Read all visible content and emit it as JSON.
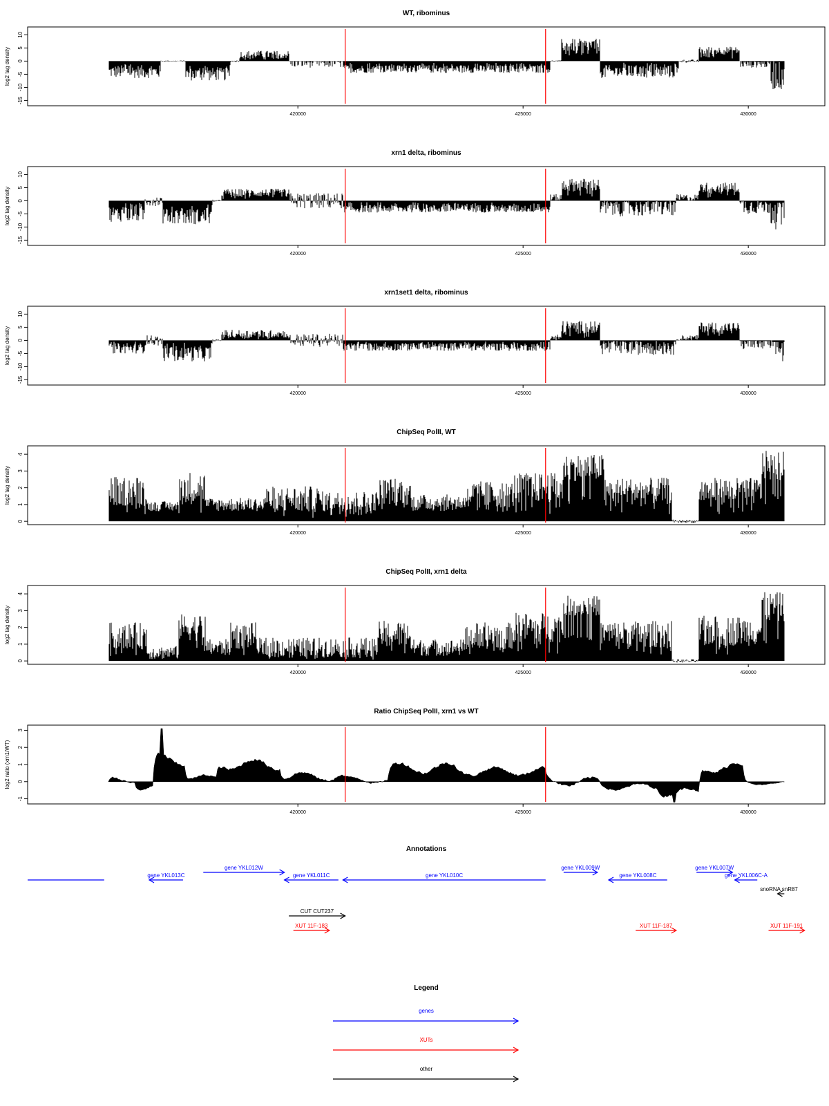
{
  "chart_data": {
    "type": "multi-panel genome browser",
    "x_axis": {
      "ticks": [
        "420000",
        "425000",
        "430000"
      ],
      "range": [
        414000,
        431700
      ],
      "data_start": 415800,
      "data_end": 430800
    },
    "marker_positions": [
      421050,
      425500
    ],
    "marker_color": "#ff0000",
    "panels": [
      {
        "id": "wt-ribominus",
        "title": "WT, ribominus",
        "ylabel": "log2 tag density",
        "type": "bar",
        "ylim": [
          -17,
          13
        ],
        "yticks": [
          10,
          5,
          0,
          -5,
          -10,
          -15
        ],
        "segments": [
          {
            "start": 415800,
            "end": 416950,
            "mean": -4,
            "amp": 2.5
          },
          {
            "start": 416950,
            "end": 417500,
            "mean": 0,
            "amp": 0.3
          },
          {
            "start": 417500,
            "end": 418500,
            "mean": -5,
            "amp": 2.5
          },
          {
            "start": 418500,
            "end": 418700,
            "mean": 0,
            "amp": 0.4
          },
          {
            "start": 418700,
            "end": 419800,
            "mean": 2.5,
            "amp": 1.5
          },
          {
            "start": 419800,
            "end": 421000,
            "mean": -0.5,
            "amp": 2
          },
          {
            "start": 421000,
            "end": 425600,
            "mean": -3,
            "amp": 1.5
          },
          {
            "start": 425600,
            "end": 425850,
            "mean": 0,
            "amp": 0.3
          },
          {
            "start": 425850,
            "end": 426700,
            "mean": 6,
            "amp": 2.5
          },
          {
            "start": 426700,
            "end": 428450,
            "mean": -4,
            "amp": 2.5
          },
          {
            "start": 428450,
            "end": 428900,
            "mean": 0,
            "amp": 0.6
          },
          {
            "start": 428900,
            "end": 429800,
            "mean": 4,
            "amp": 1.5
          },
          {
            "start": 429800,
            "end": 430500,
            "mean": -1,
            "amp": 1.5
          },
          {
            "start": 430500,
            "end": 430800,
            "mean": -5,
            "amp": 6
          }
        ]
      },
      {
        "id": "xrn1-ribominus",
        "title": "xrn1 delta, ribominus",
        "ylabel": "log2 tag density",
        "type": "bar",
        "ylim": [
          -17,
          13
        ],
        "yticks": [
          10,
          5,
          0,
          -5,
          -10,
          -15
        ],
        "segments": [
          {
            "start": 415800,
            "end": 416600,
            "mean": -5,
            "amp": 3
          },
          {
            "start": 416600,
            "end": 417000,
            "mean": 0,
            "amp": 2
          },
          {
            "start": 417000,
            "end": 418100,
            "mean": -6,
            "amp": 3
          },
          {
            "start": 418100,
            "end": 418300,
            "mean": 0,
            "amp": 0.4
          },
          {
            "start": 418300,
            "end": 419800,
            "mean": 3,
            "amp": 1.5
          },
          {
            "start": 419800,
            "end": 421000,
            "mean": 0,
            "amp": 3
          },
          {
            "start": 421000,
            "end": 425600,
            "mean": -3,
            "amp": 1.5
          },
          {
            "start": 425600,
            "end": 425850,
            "mean": 1,
            "amp": 1.5
          },
          {
            "start": 425850,
            "end": 426700,
            "mean": 6,
            "amp": 2.5
          },
          {
            "start": 426700,
            "end": 428400,
            "mean": -2.5,
            "amp": 3.5
          },
          {
            "start": 428400,
            "end": 428900,
            "mean": 1,
            "amp": 1.5
          },
          {
            "start": 428900,
            "end": 429800,
            "mean": 5,
            "amp": 2
          },
          {
            "start": 429800,
            "end": 430500,
            "mean": -2,
            "amp": 3
          },
          {
            "start": 430500,
            "end": 430800,
            "mean": -4,
            "amp": 7
          }
        ]
      },
      {
        "id": "xrn1set1-ribominus",
        "title": "xrn1set1 delta, ribominus",
        "ylabel": "log2 tag density",
        "type": "bar",
        "ylim": [
          -17,
          13
        ],
        "yticks": [
          10,
          5,
          0,
          -5,
          -10,
          -15
        ],
        "segments": [
          {
            "start": 415800,
            "end": 416600,
            "mean": -3,
            "amp": 2
          },
          {
            "start": 416600,
            "end": 417000,
            "mean": 0,
            "amp": 2
          },
          {
            "start": 417000,
            "end": 418100,
            "mean": -5,
            "amp": 3
          },
          {
            "start": 418100,
            "end": 418300,
            "mean": 0,
            "amp": 0.4
          },
          {
            "start": 418300,
            "end": 419800,
            "mean": 2.5,
            "amp": 1.5
          },
          {
            "start": 419800,
            "end": 421000,
            "mean": 0,
            "amp": 2.5
          },
          {
            "start": 421000,
            "end": 425600,
            "mean": -2.5,
            "amp": 1.5
          },
          {
            "start": 425600,
            "end": 425850,
            "mean": 1,
            "amp": 1.5
          },
          {
            "start": 425850,
            "end": 426700,
            "mean": 5,
            "amp": 2.5
          },
          {
            "start": 426700,
            "end": 428400,
            "mean": -2.5,
            "amp": 3
          },
          {
            "start": 428400,
            "end": 428900,
            "mean": 1,
            "amp": 1
          },
          {
            "start": 428900,
            "end": 429800,
            "mean": 5,
            "amp": 2
          },
          {
            "start": 429800,
            "end": 430500,
            "mean": -1,
            "amp": 3
          },
          {
            "start": 430500,
            "end": 430800,
            "mean": -3,
            "amp": 6
          }
        ]
      },
      {
        "id": "chipseq-wt",
        "title": "ChipSeq PolII, WT",
        "ylabel": "log2 tag density",
        "type": "bar",
        "ylim": [
          -0.2,
          4.5
        ],
        "yticks": [
          0,
          1,
          2,
          3,
          4
        ],
        "segments": [
          {
            "start": 415800,
            "end": 416650,
            "mean": 1.8,
            "amp": 0.9
          },
          {
            "start": 416650,
            "end": 417350,
            "mean": 0.9,
            "amp": 0.3
          },
          {
            "start": 417350,
            "end": 417950,
            "mean": 2,
            "amp": 1
          },
          {
            "start": 417950,
            "end": 419200,
            "mean": 1,
            "amp": 0.4
          },
          {
            "start": 419200,
            "end": 420500,
            "mean": 1.3,
            "amp": 0.8
          },
          {
            "start": 420500,
            "end": 421800,
            "mean": 1.2,
            "amp": 0.6
          },
          {
            "start": 421800,
            "end": 422500,
            "mean": 1.8,
            "amp": 0.8
          },
          {
            "start": 422500,
            "end": 423700,
            "mean": 1.1,
            "amp": 0.5
          },
          {
            "start": 423700,
            "end": 424800,
            "mean": 1.6,
            "amp": 0.8
          },
          {
            "start": 424800,
            "end": 425900,
            "mean": 2,
            "amp": 0.9
          },
          {
            "start": 425900,
            "end": 426800,
            "mean": 3.2,
            "amp": 0.8
          },
          {
            "start": 426800,
            "end": 428300,
            "mean": 1.8,
            "amp": 0.8
          },
          {
            "start": 428300,
            "end": 428900,
            "mean": 0,
            "amp": 0.1
          },
          {
            "start": 428900,
            "end": 430300,
            "mean": 1.8,
            "amp": 0.8
          },
          {
            "start": 430300,
            "end": 430800,
            "mean": 3.3,
            "amp": 0.9
          }
        ]
      },
      {
        "id": "chipseq-xrn1",
        "title": "ChipSeq PolII, xrn1 delta",
        "ylabel": "log2 tag density",
        "type": "bar",
        "ylim": [
          -0.2,
          4.5
        ],
        "yticks": [
          0,
          1,
          2,
          3,
          4
        ],
        "segments": [
          {
            "start": 415800,
            "end": 416650,
            "mean": 1.5,
            "amp": 0.8
          },
          {
            "start": 416650,
            "end": 417350,
            "mean": 0.5,
            "amp": 0.4
          },
          {
            "start": 417350,
            "end": 417950,
            "mean": 2,
            "amp": 0.8
          },
          {
            "start": 417950,
            "end": 418500,
            "mean": 0.8,
            "amp": 0.5
          },
          {
            "start": 418500,
            "end": 419100,
            "mean": 1.5,
            "amp": 0.8
          },
          {
            "start": 419100,
            "end": 421800,
            "mean": 0.8,
            "amp": 0.6
          },
          {
            "start": 421800,
            "end": 422500,
            "mean": 1.6,
            "amp": 0.8
          },
          {
            "start": 422500,
            "end": 423700,
            "mean": 0.8,
            "amp": 0.5
          },
          {
            "start": 423700,
            "end": 424800,
            "mean": 1.5,
            "amp": 0.8
          },
          {
            "start": 424800,
            "end": 425900,
            "mean": 2,
            "amp": 0.9
          },
          {
            "start": 425900,
            "end": 426700,
            "mean": 3.3,
            "amp": 0.6
          },
          {
            "start": 426700,
            "end": 428300,
            "mean": 1.6,
            "amp": 0.8
          },
          {
            "start": 428300,
            "end": 428900,
            "mean": 0,
            "amp": 0.1
          },
          {
            "start": 428900,
            "end": 430300,
            "mean": 1.8,
            "amp": 0.9
          },
          {
            "start": 430300,
            "end": 430800,
            "mean": 3.2,
            "amp": 0.9
          }
        ]
      },
      {
        "id": "ratio",
        "title": "Ratio ChipSeq PolII, xrn1 vs WT",
        "ylabel": "log2 ratio (xrn1/WT)",
        "type": "area",
        "ylim": [
          -1.3,
          3.3
        ],
        "yticks": [
          3,
          2,
          1,
          0,
          -1
        ],
        "segments": [
          {
            "start": 415800,
            "end": 416400,
            "mean": 0.1,
            "amp": 0.3
          },
          {
            "start": 416400,
            "end": 416800,
            "mean": -0.4,
            "amp": 0.3
          },
          {
            "start": 416800,
            "end": 417500,
            "mean": 1.3,
            "amp": 0.6
          },
          {
            "start": 417500,
            "end": 418200,
            "mean": 0.2,
            "amp": 0.3
          },
          {
            "start": 418200,
            "end": 419600,
            "mean": 1,
            "amp": 0.5
          },
          {
            "start": 419600,
            "end": 421000,
            "mean": 0.3,
            "amp": 0.4
          },
          {
            "start": 421000,
            "end": 422000,
            "mean": 0.1,
            "amp": 0.3
          },
          {
            "start": 422000,
            "end": 423500,
            "mean": 0.8,
            "amp": 0.5
          },
          {
            "start": 423500,
            "end": 425500,
            "mean": 0.6,
            "amp": 0.4
          },
          {
            "start": 425500,
            "end": 426700,
            "mean": 0,
            "amp": 0.4
          },
          {
            "start": 426700,
            "end": 428000,
            "mean": -0.3,
            "amp": 0.3
          },
          {
            "start": 428000,
            "end": 428900,
            "mean": -0.6,
            "amp": 0.4
          },
          {
            "start": 428900,
            "end": 429900,
            "mean": 0.8,
            "amp": 0.5
          },
          {
            "start": 429900,
            "end": 430800,
            "mean": -0.1,
            "amp": 0.15
          }
        ],
        "peaks": [
          {
            "x": 416980,
            "y": 3.1
          },
          {
            "x": 428350,
            "y": -1.2
          }
        ]
      }
    ],
    "annotations": {
      "title": "Annotations",
      "features": [
        {
          "label": "",
          "start": 414000,
          "end": 415700,
          "row": 1,
          "strand": "none",
          "class": "gene"
        },
        {
          "label": "gene YKL013C",
          "start": 416700,
          "end": 417450,
          "row": 1,
          "strand": "-",
          "class": "gene"
        },
        {
          "label": "gene YKL012W",
          "start": 417900,
          "end": 419700,
          "row": 0,
          "strand": "+",
          "class": "gene"
        },
        {
          "label": "gene YKL011C",
          "start": 419700,
          "end": 420900,
          "row": 1,
          "strand": "-",
          "class": "gene"
        },
        {
          "label": "gene YKL010C",
          "start": 421000,
          "end": 425500,
          "row": 1,
          "strand": "-",
          "class": "gene"
        },
        {
          "label": "gene YKL009W",
          "start": 425900,
          "end": 426650,
          "row": 0,
          "strand": "+",
          "class": "gene"
        },
        {
          "label": "gene YKL008C",
          "start": 426900,
          "end": 428200,
          "row": 1,
          "strand": "-",
          "class": "gene"
        },
        {
          "label": "gene YKL007W",
          "start": 428850,
          "end": 429650,
          "row": 0,
          "strand": "+",
          "class": "gene"
        },
        {
          "label": "gene YKL006C-A",
          "start": 429700,
          "end": 430200,
          "row": 1,
          "strand": "-",
          "class": "gene"
        },
        {
          "label": "snoRNA snR87",
          "start": 430650,
          "end": 430800,
          "row": 2,
          "strand": "-",
          "class": "other"
        },
        {
          "label": "CUT CUT237",
          "start": 419800,
          "end": 421050,
          "row": 3,
          "strand": "+",
          "class": "other"
        },
        {
          "label": "XUT 11F-183",
          "start": 419900,
          "end": 420700,
          "row": 4,
          "strand": "+",
          "class": "xut"
        },
        {
          "label": "XUT 11F-187",
          "start": 427500,
          "end": 428400,
          "row": 4,
          "strand": "+",
          "class": "xut"
        },
        {
          "label": "XUT 11F-191",
          "start": 430450,
          "end": 431250,
          "row": 4,
          "strand": "+",
          "class": "xut"
        }
      ]
    },
    "legend": {
      "title": "Legend",
      "items": [
        {
          "label": "genes",
          "color": "#0000ff"
        },
        {
          "label": "XUTs",
          "color": "#ff0000"
        },
        {
          "label": "other",
          "color": "#000000"
        }
      ]
    }
  }
}
